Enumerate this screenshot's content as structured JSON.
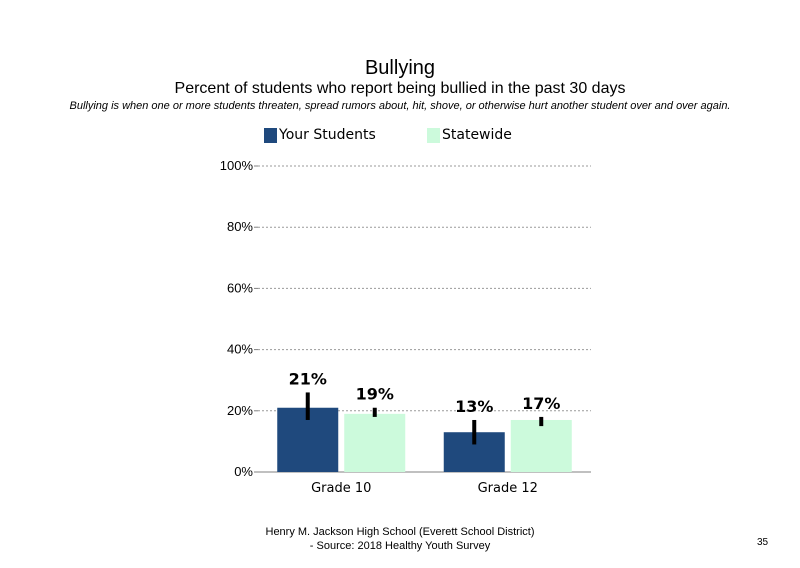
{
  "chart_data": {
    "type": "bar",
    "title": "Bullying",
    "subtitle": "Percent of students who report being bullied in the past 30 days",
    "note": "Bullying is when one or more students threaten, spread rumors about, hit, shove, or otherwise hurt another student over and over again.",
    "categories": [
      "Grade 10",
      "Grade 12"
    ],
    "series": [
      {
        "name": "Your Students",
        "color": "#1f497d",
        "values": [
          21,
          13
        ],
        "labels": [
          "21%",
          "13%"
        ],
        "error_low": [
          17,
          9
        ],
        "error_high": [
          26,
          17
        ]
      },
      {
        "name": "Statewide",
        "color": "#ccfadc",
        "values": [
          19,
          17
        ],
        "labels": [
          "19%",
          "17%"
        ],
        "error_low": [
          18,
          15
        ],
        "error_high": [
          21,
          18
        ]
      }
    ],
    "y_ticks": [
      "0%",
      "20%",
      "40%",
      "60%",
      "80%",
      "100%"
    ],
    "ylim": [
      0,
      100
    ],
    "grid": true,
    "legend": "top"
  },
  "footer": {
    "line1": "Henry M. Jackson High School (Everett School District)",
    "line2": "- Source: 2018 Healthy Youth Survey",
    "page_number": "35"
  }
}
